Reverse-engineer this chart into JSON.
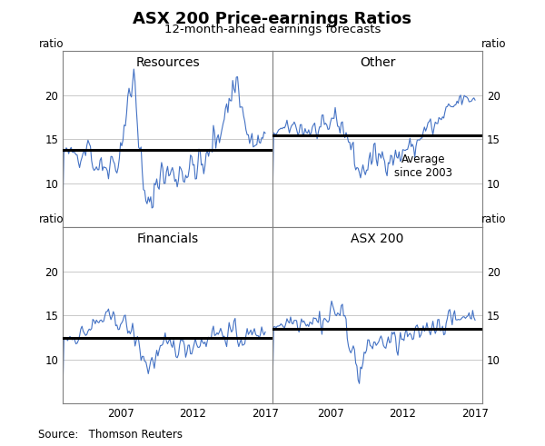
{
  "title": "ASX 200 Price-earnings Ratios",
  "subtitle": "12-month-ahead earnings forecasts",
  "source": "Source:   Thomson Reuters",
  "panels": [
    "Resources",
    "Other",
    "Financials",
    "ASX 200"
  ],
  "ylabel": "ratio",
  "line_color": "#4472C4",
  "avg_line_color": "#000000",
  "avg_label": "Average\nsince 2003",
  "background_color": "#ffffff",
  "grid_color": "#c0c0c0",
  "averages": {
    "Resources": 13.8,
    "Other": 15.5,
    "Financials": 12.5,
    "ASX 200": 13.5
  },
  "ylim": [
    5,
    25
  ],
  "yticks": [
    10,
    15,
    20
  ],
  "xlim": [
    2003.0,
    2017.5
  ],
  "xticks": [
    2007,
    2012,
    2017
  ],
  "title_fontsize": 13,
  "subtitle_fontsize": 9.5,
  "panel_title_fontsize": 10,
  "tick_fontsize": 8.5,
  "source_fontsize": 8.5,
  "ratio_fontsize": 8.5,
  "annot_fontsize": 8.5
}
